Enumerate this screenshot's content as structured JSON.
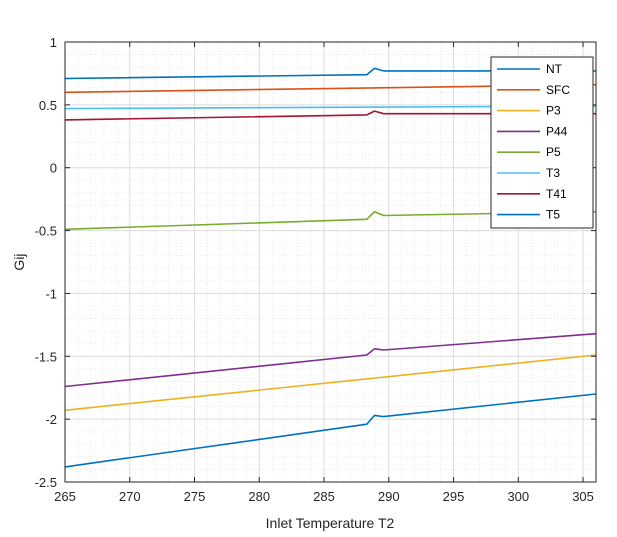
{
  "chart_data": {
    "type": "line",
    "xlabel": "Inlet Temperature T2",
    "ylabel": "Gij",
    "xlim": [
      265,
      306
    ],
    "ylim": [
      -2.5,
      1
    ],
    "xticks": [
      "265",
      "270",
      "275",
      "280",
      "285",
      "290",
      "295",
      "300",
      "305"
    ],
    "yticks": [
      "1",
      "0.5",
      "0",
      "-0.5",
      "-1",
      "-1.5",
      "-2",
      "-2.5"
    ],
    "grid": true,
    "minor_grid": true,
    "legend_position": "top-right",
    "series": [
      {
        "name": "NT",
        "color": "#0072BD",
        "x": [
          265,
          288.3,
          288.9,
          289.6,
          306
        ],
        "y": [
          0.71,
          0.74,
          0.79,
          0.77,
          0.77
        ]
      },
      {
        "name": "SFC",
        "color": "#D95319",
        "x": [
          265,
          306
        ],
        "y": [
          0.6,
          0.66
        ]
      },
      {
        "name": "P3",
        "color": "#EDB120",
        "x": [
          265,
          306
        ],
        "y": [
          -1.93,
          -1.49
        ]
      },
      {
        "name": "P44",
        "color": "#7E2F8E",
        "x": [
          265,
          288.3,
          288.9,
          289.6,
          306
        ],
        "y": [
          -1.74,
          -1.49,
          -1.44,
          -1.45,
          -1.32
        ]
      },
      {
        "name": "P5",
        "color": "#77AC30",
        "x": [
          265,
          288.3,
          288.9,
          289.6,
          306
        ],
        "y": [
          -0.49,
          -0.41,
          -0.35,
          -0.38,
          -0.35
        ]
      },
      {
        "name": "T3",
        "color": "#4DBEEE",
        "x": [
          265,
          306
        ],
        "y": [
          0.47,
          0.49
        ]
      },
      {
        "name": "T41",
        "color": "#A2142F",
        "x": [
          265,
          288.3,
          288.9,
          289.6,
          306
        ],
        "y": [
          0.38,
          0.42,
          0.45,
          0.43,
          0.43
        ]
      },
      {
        "name": "T5",
        "color": "#0072BD",
        "x": [
          265,
          288.3,
          288.9,
          289.6,
          306
        ],
        "y": [
          -2.38,
          -2.04,
          -1.97,
          -1.98,
          -1.8
        ]
      }
    ]
  }
}
